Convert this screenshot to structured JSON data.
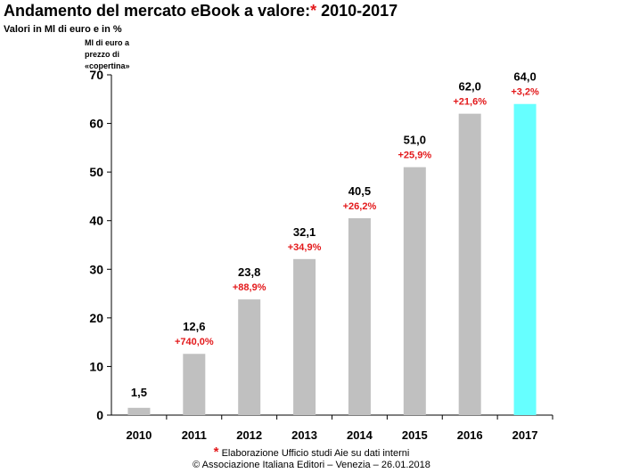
{
  "header": {
    "title": "Andamento del  mercato eBook a valore:",
    "title_star": "*",
    "title_years": " 2010-2017",
    "subtitle": "Valori in Ml di euro e in %",
    "unit_note": "Ml di euro a prezzo di «copertina»"
  },
  "footer": {
    "star": "*",
    "source": " Elaborazione Ufficio studi Aie su dati interni",
    "copyright": "© Associazione Italiana Editori – Venezia – 26.01.2018"
  },
  "colors": {
    "bar": "#c0c0c0",
    "highlight_bar": "#66ffff",
    "growth_label": "#e3191b",
    "axis": "#000000"
  },
  "chart_data": {
    "type": "bar",
    "title": "Andamento del  mercato eBook a valore: 2010-2017",
    "ylabel": "Ml di euro a prezzo di «copertina»",
    "xlabel": "",
    "ylim": [
      0,
      70
    ],
    "yticks": [
      0,
      10,
      20,
      30,
      40,
      50,
      60,
      70
    ],
    "grid": false,
    "categories": [
      "2010",
      "2011",
      "2012",
      "2013",
      "2014",
      "2015",
      "2016",
      "2017"
    ],
    "values": [
      1.5,
      12.6,
      23.8,
      32.1,
      40.5,
      51.0,
      62.0,
      64.0
    ],
    "value_labels": [
      "1,5",
      "12,6",
      "23,8",
      "32,1",
      "40,5",
      "51,0",
      "62,0",
      "64,0"
    ],
    "growth_labels": [
      "",
      "+740,0%",
      "+88,9%",
      "+34,9%",
      "+26,2%",
      "+25,9%",
      "+21,6%",
      "+3,2%"
    ],
    "highlight_index": 7
  }
}
